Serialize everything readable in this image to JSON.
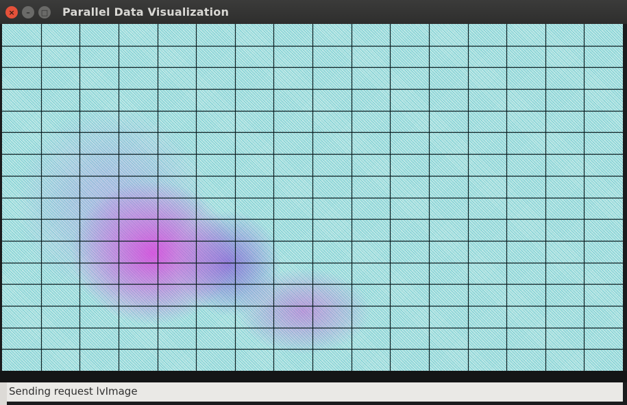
{
  "window": {
    "title": "Parallel Data Visualization",
    "close_glyph": "×",
    "min_glyph": "–",
    "max_glyph": "□"
  },
  "colors": {
    "background": "#bfe8e4",
    "dense_region": "#d846dc",
    "grid_line": "#0c1f22",
    "titlebar": "#2e2e2d",
    "close_button": "#e4513a"
  },
  "grid": {
    "columns": 16,
    "rows": 16
  },
  "status": {
    "text": "Sending request lvImage"
  },
  "icons": {
    "close": "close-icon",
    "minimize": "minimize-icon",
    "maximize": "maximize-icon"
  }
}
